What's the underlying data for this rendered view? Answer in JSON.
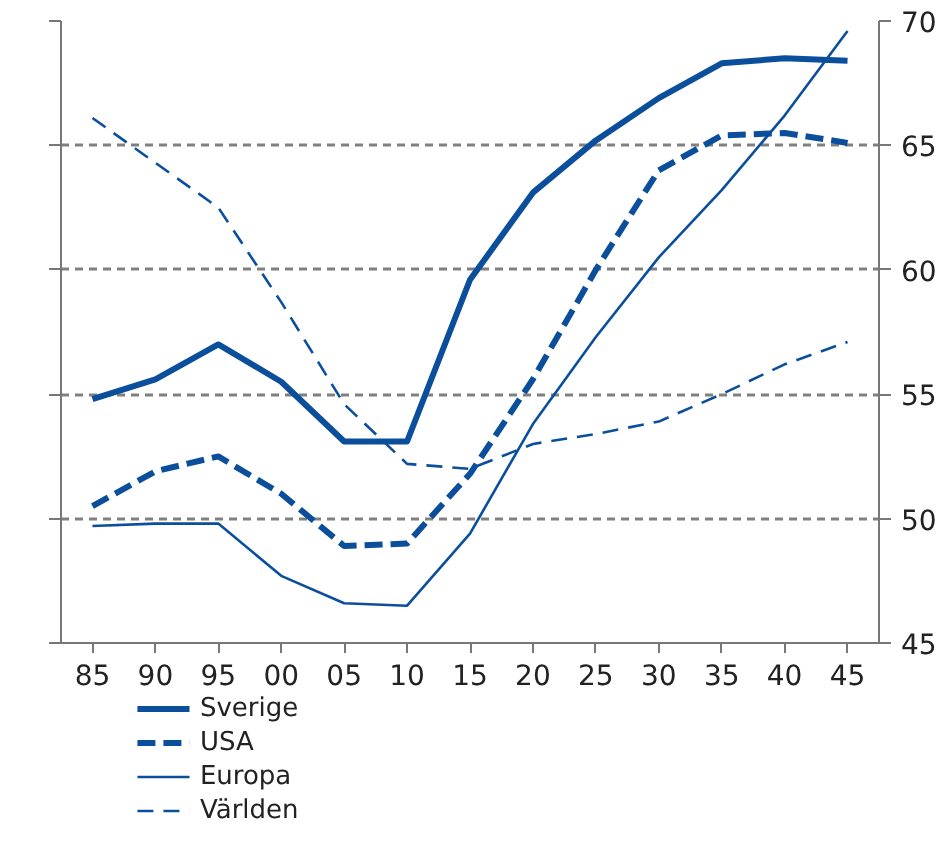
{
  "chart_data": {
    "type": "line",
    "categories": [
      "85",
      "90",
      "95",
      "00",
      "05",
      "10",
      "15",
      "20",
      "25",
      "30",
      "35",
      "40",
      "45"
    ],
    "series": [
      {
        "name": "Sverige",
        "color": "#0b4f9c",
        "line_style": "solid",
        "values": [
          54.8,
          55.6,
          57.0,
          55.5,
          53.1,
          53.1,
          59.6,
          63.1,
          65.2,
          66.9,
          68.3,
          68.5,
          68.4
        ]
      },
      {
        "name": "USA",
        "color": "#0b4f9c",
        "line_style": "dashed",
        "values": [
          50.5,
          51.9,
          52.5,
          51.0,
          48.9,
          49.0,
          51.8,
          55.6,
          60.0,
          64.0,
          65.4,
          65.5,
          65.1
        ]
      },
      {
        "name": "Europa",
        "color": "#0b4f9c",
        "line_style": "solid",
        "values": [
          49.7,
          49.8,
          49.8,
          47.7,
          46.6,
          46.5,
          49.4,
          53.8,
          57.3,
          60.5,
          63.2,
          66.2,
          69.6
        ]
      },
      {
        "name": "Världen",
        "color": "#0b4f9c",
        "line_style": "dashed",
        "values": [
          66.1,
          64.3,
          62.5,
          58.7,
          54.6,
          52.2,
          52.0,
          53.0,
          53.4,
          53.9,
          55.0,
          56.2,
          57.1
        ]
      }
    ],
    "ylim": [
      45,
      70
    ],
    "yticks": [
      45,
      50,
      55,
      60,
      65,
      70
    ],
    "grid": "y",
    "legend": "bottom",
    "marker": "none"
  }
}
